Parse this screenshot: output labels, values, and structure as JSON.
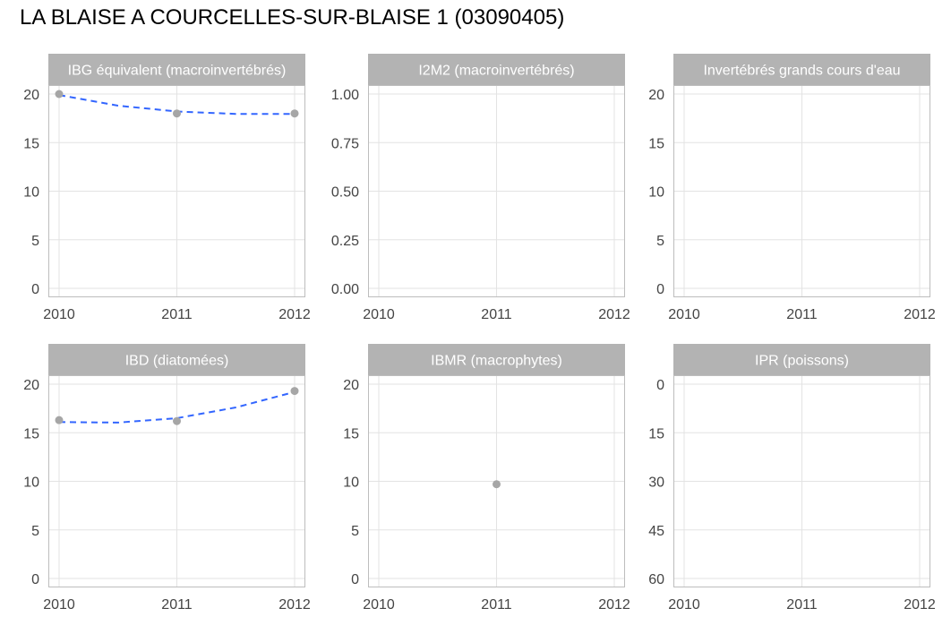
{
  "page": {
    "title": "LA BLAISE A COURCELLES-SUR-BLAISE 1 (03090405)"
  },
  "style": {
    "strip_bg": "#b3b3b3",
    "strip_text": "#ffffff",
    "panel_border": "#bdbdbd",
    "grid": "#e3e3e3",
    "point": "#a6a6a6",
    "trend": "#3366ff",
    "tick_text": "#444444"
  },
  "chart_data": [
    {
      "type": "scatter",
      "title": "IBG équivalent (macroinvertébrés)",
      "x": [
        2010,
        2011,
        2012
      ],
      "y": [
        20,
        18,
        18
      ],
      "trend": [
        {
          "x": 2010,
          "y": 19.9
        },
        {
          "x": 2010.5,
          "y": 18.8
        },
        {
          "x": 2011,
          "y": 18.2
        },
        {
          "x": 2011.5,
          "y": 17.95
        },
        {
          "x": 2012,
          "y": 17.95
        }
      ],
      "xticks": [
        "2010",
        "2011",
        "2012"
      ],
      "yticks": [
        "0",
        "5",
        "10",
        "15",
        "20"
      ],
      "ytick_values": [
        0,
        5,
        10,
        15,
        20
      ],
      "ylim": [
        0,
        20
      ],
      "yreverse": false
    },
    {
      "type": "scatter",
      "title": "I2M2 (macroinvertébrés)",
      "x": [],
      "y": [],
      "trend": [],
      "xticks": [
        "2010",
        "2011",
        "2012"
      ],
      "yticks": [
        "0.00",
        "0.25",
        "0.50",
        "0.75",
        "1.00"
      ],
      "ytick_values": [
        0,
        0.25,
        0.5,
        0.75,
        1
      ],
      "ylim": [
        0,
        1
      ],
      "yreverse": false
    },
    {
      "type": "scatter",
      "title": "Invertébrés grands cours d'eau",
      "x": [],
      "y": [],
      "trend": [],
      "xticks": [
        "2010",
        "2011",
        "2012"
      ],
      "yticks": [
        "0",
        "5",
        "10",
        "15",
        "20"
      ],
      "ytick_values": [
        0,
        5,
        10,
        15,
        20
      ],
      "ylim": [
        0,
        20
      ],
      "yreverse": false
    },
    {
      "type": "scatter",
      "title": "IBD (diatomées)",
      "x": [
        2010,
        2011,
        2012
      ],
      "y": [
        16.3,
        16.2,
        19.3
      ],
      "trend": [
        {
          "x": 2010,
          "y": 16.1
        },
        {
          "x": 2010.5,
          "y": 16.05
        },
        {
          "x": 2011,
          "y": 16.5
        },
        {
          "x": 2011.5,
          "y": 17.6
        },
        {
          "x": 2012,
          "y": 19.2
        }
      ],
      "xticks": [
        "2010",
        "2011",
        "2012"
      ],
      "yticks": [
        "0",
        "5",
        "10",
        "15",
        "20"
      ],
      "ytick_values": [
        0,
        5,
        10,
        15,
        20
      ],
      "ylim": [
        0,
        20
      ],
      "yreverse": false
    },
    {
      "type": "scatter",
      "title": "IBMR (macrophytes)",
      "x": [
        2011
      ],
      "y": [
        9.7
      ],
      "trend": [],
      "xticks": [
        "2010",
        "2011",
        "2012"
      ],
      "yticks": [
        "0",
        "5",
        "10",
        "15",
        "20"
      ],
      "ytick_values": [
        0,
        5,
        10,
        15,
        20
      ],
      "ylim": [
        0,
        20
      ],
      "yreverse": false
    },
    {
      "type": "scatter",
      "title": "IPR (poissons)",
      "x": [],
      "y": [],
      "trend": [],
      "xticks": [
        "2010",
        "2011",
        "2012"
      ],
      "yticks": [
        "0",
        "15",
        "30",
        "45",
        "60"
      ],
      "ytick_values": [
        0,
        15,
        30,
        45,
        60
      ],
      "ylim": [
        0,
        60
      ],
      "yreverse": true
    }
  ]
}
